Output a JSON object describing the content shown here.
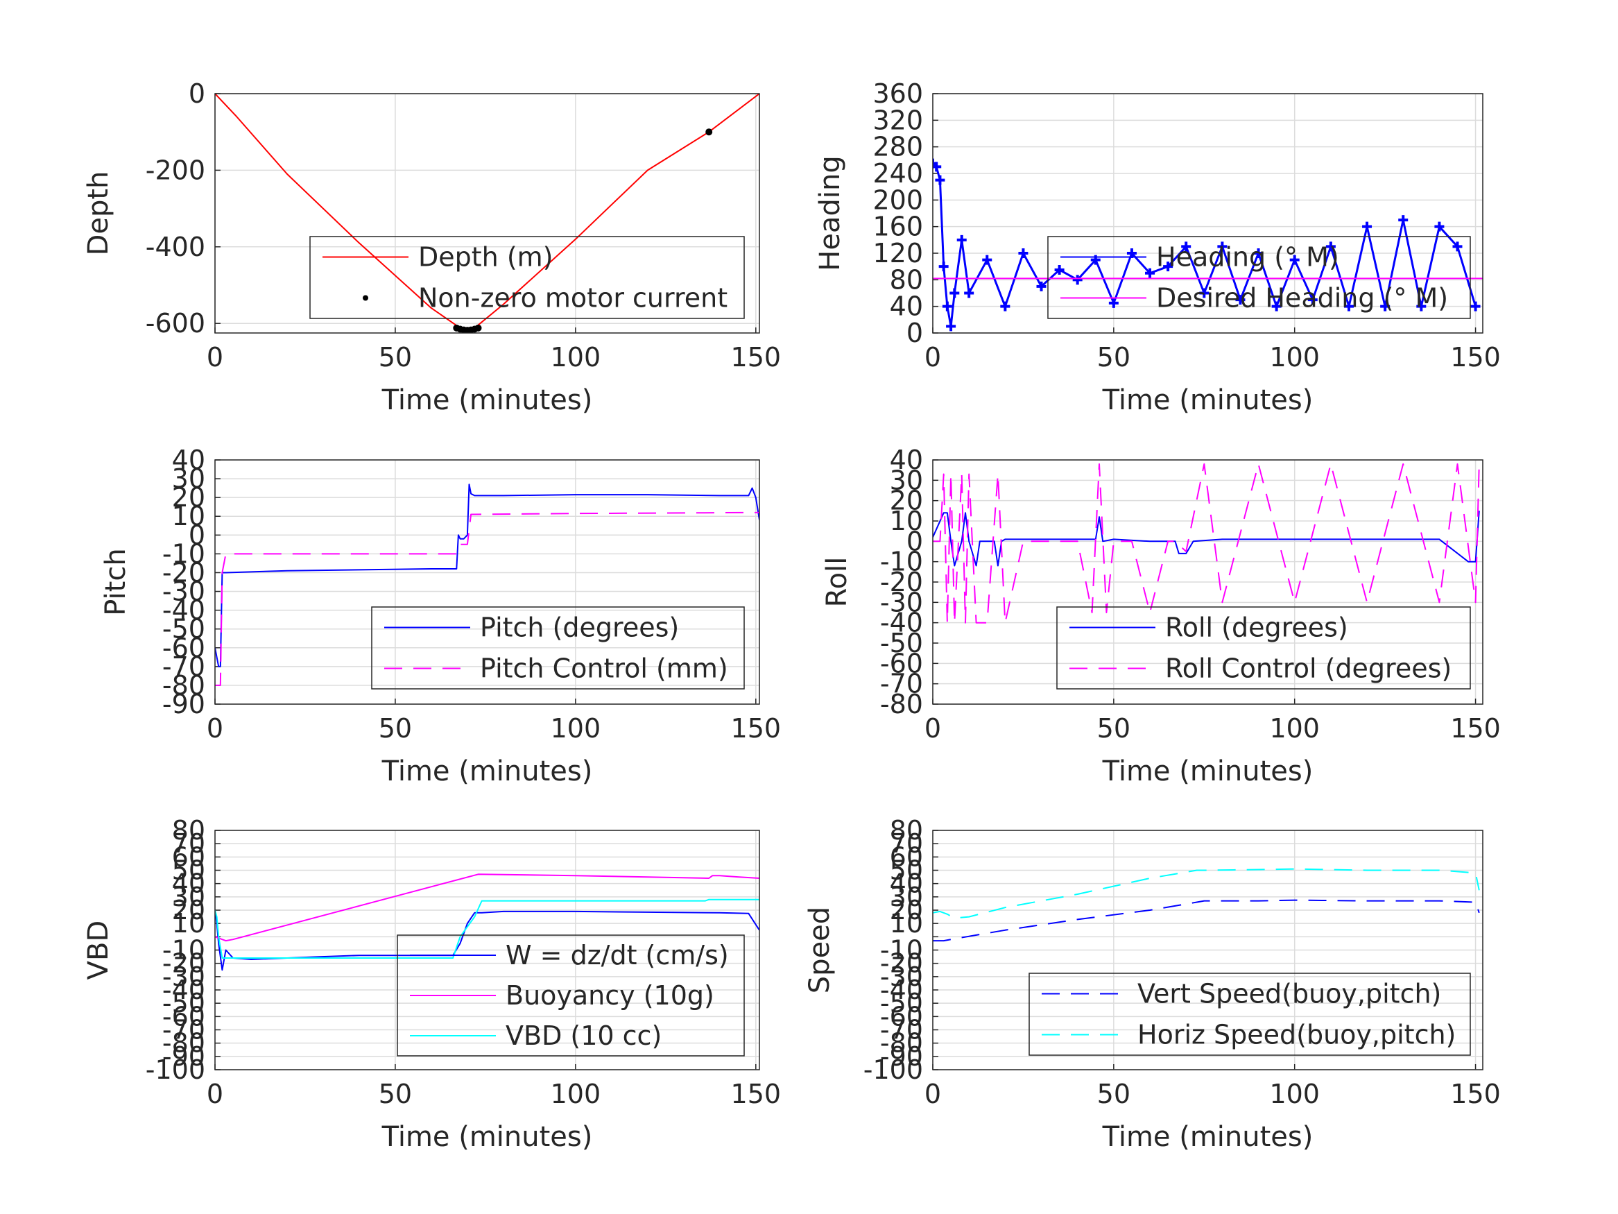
{
  "chart_data": [
    {
      "type": "line",
      "xlabel": "Time (minutes)",
      "ylabel": "Depth",
      "xlim": [
        0,
        151
      ],
      "ylim": [
        -625,
        0
      ],
      "xticks": [
        0,
        50,
        100,
        150
      ],
      "yticks": [
        0,
        -200,
        -400,
        -600
      ],
      "grid": true,
      "legend_position": "bottom-right",
      "series": [
        {
          "name": "Depth (m)",
          "color": "#ff0000",
          "style": "solid",
          "x": [
            0,
            6,
            20,
            40,
            60,
            68,
            72,
            80,
            100,
            120,
            137,
            151
          ],
          "y": [
            0,
            -60,
            -210,
            -390,
            -560,
            -612,
            -612,
            -550,
            -380,
            -200,
            -100,
            0
          ]
        },
        {
          "name": "Non-zero motor current",
          "color": "#000000",
          "style": "dots",
          "x": [
            67,
            68,
            69,
            70,
            71,
            72,
            73,
            137
          ],
          "y": [
            -612,
            -615,
            -617,
            -618,
            -617,
            -615,
            -612,
            -100
          ]
        }
      ]
    },
    {
      "type": "line",
      "xlabel": "Time (minutes)",
      "ylabel": "Heading",
      "xlim": [
        0,
        152
      ],
      "ylim": [
        0,
        360
      ],
      "xticks": [
        0,
        50,
        100,
        150
      ],
      "yticks": [
        0,
        40,
        80,
        120,
        160,
        200,
        240,
        280,
        320,
        360
      ],
      "grid": true,
      "legend_position": "center-right",
      "series": [
        {
          "name": "Heading (° M)",
          "color": "#0000ff",
          "style": "plus-markers",
          "x": [
            0,
            1,
            2,
            3,
            4,
            5,
            6,
            8,
            10,
            15,
            20,
            25,
            30,
            35,
            40,
            45,
            50,
            55,
            60,
            65,
            70,
            75,
            80,
            85,
            90,
            95,
            100,
            105,
            110,
            115,
            120,
            125,
            130,
            135,
            140,
            145,
            150
          ],
          "y": [
            255,
            250,
            230,
            100,
            40,
            10,
            60,
            140,
            60,
            110,
            40,
            120,
            70,
            95,
            80,
            110,
            45,
            120,
            90,
            100,
            130,
            60,
            130,
            50,
            120,
            40,
            110,
            50,
            130,
            40,
            160,
            40,
            170,
            40,
            160,
            130,
            40
          ]
        },
        {
          "name": "Desired Heading (° M)",
          "color": "#ff00ff",
          "style": "solid",
          "x": [
            0,
            152
          ],
          "y": [
            82,
            82
          ]
        }
      ]
    },
    {
      "type": "line",
      "xlabel": "Time (minutes)",
      "ylabel": "Pitch",
      "xlim": [
        0,
        151
      ],
      "ylim": [
        -90,
        40
      ],
      "xticks": [
        0,
        50,
        100,
        150
      ],
      "yticks": [
        40,
        30,
        20,
        10,
        0,
        -10,
        -20,
        -30,
        -40,
        -50,
        -60,
        -70,
        -80,
        -90
      ],
      "grid": true,
      "legend_position": "bottom-right",
      "series": [
        {
          "name": "Pitch (degrees)",
          "color": "#0000ff",
          "style": "solid",
          "x": [
            0,
            1,
            1.5,
            2,
            3,
            20,
            40,
            60,
            67,
            67.5,
            68,
            69,
            70,
            70.5,
            71,
            72,
            80,
            100,
            120,
            140,
            148,
            149,
            150,
            151
          ],
          "y": [
            -60,
            -70,
            -70,
            -20,
            -20,
            -19,
            -18.5,
            -18,
            -18,
            0,
            -2,
            -2,
            0,
            27,
            22,
            21,
            21,
            21.5,
            21.5,
            21,
            21,
            25,
            20,
            8
          ]
        },
        {
          "name": "Pitch Control (mm)",
          "color": "#ff00ff",
          "style": "dashed",
          "x": [
            0,
            1.5,
            2,
            3,
            67,
            68,
            70,
            71,
            100,
            151
          ],
          "y": [
            -80,
            -80,
            -20,
            -10,
            -10,
            -5,
            -5,
            11,
            11.5,
            12
          ]
        }
      ]
    },
    {
      "type": "line",
      "xlabel": "Time (minutes)",
      "ylabel": "Roll",
      "xlim": [
        0,
        152
      ],
      "ylim": [
        -80,
        40
      ],
      "xticks": [
        0,
        50,
        100,
        150
      ],
      "yticks": [
        40,
        30,
        20,
        10,
        0,
        -10,
        -20,
        -30,
        -40,
        -50,
        -60,
        -70,
        -80
      ],
      "grid": true,
      "legend_position": "bottom-right",
      "series": [
        {
          "name": "Roll (degrees)",
          "color": "#0000ff",
          "style": "solid",
          "x": [
            0,
            3,
            4,
            5,
            6,
            8,
            9,
            10,
            12,
            13,
            14,
            17,
            18,
            19,
            20,
            30,
            35,
            40,
            45,
            46,
            47,
            50,
            60,
            67,
            68,
            70,
            72,
            80,
            90,
            100,
            110,
            120,
            130,
            140,
            148,
            150,
            151
          ],
          "y": [
            2,
            14,
            14,
            0,
            -12,
            0,
            14,
            0,
            -12,
            0,
            0,
            0,
            -12,
            0,
            1,
            1,
            1,
            1,
            1,
            12,
            0,
            1,
            0,
            0,
            -6,
            -6,
            0,
            1,
            1,
            1,
            1,
            1,
            1,
            1,
            -10,
            -10,
            15
          ]
        },
        {
          "name": "Roll Control (degrees)",
          "color": "#ff00ff",
          "style": "dashed",
          "x": [
            0,
            2,
            3,
            4,
            5,
            6,
            8,
            9,
            10,
            12,
            15,
            18,
            20,
            25,
            30,
            40,
            44,
            46,
            48,
            50,
            55,
            60,
            65,
            67,
            70,
            75,
            80,
            90,
            100,
            110,
            120,
            130,
            140,
            145,
            150,
            151
          ],
          "y": [
            0,
            0,
            33,
            -40,
            33,
            -40,
            33,
            -40,
            33,
            -40,
            -40,
            33,
            -40,
            0,
            0,
            0,
            -35,
            38,
            -35,
            0,
            0,
            -35,
            0,
            0,
            -5,
            38,
            -30,
            38,
            -30,
            38,
            -30,
            38,
            -30,
            38,
            -30,
            38
          ]
        }
      ]
    },
    {
      "type": "line",
      "xlabel": "Time (minutes)",
      "ylabel": "VBD",
      "xlim": [
        0,
        151
      ],
      "ylim": [
        -100,
        80
      ],
      "xticks": [
        0,
        50,
        100,
        150
      ],
      "yticks": [
        80,
        70,
        60,
        50,
        40,
        30,
        20,
        10,
        0,
        -10,
        -20,
        -30,
        -40,
        -50,
        -60,
        -70,
        -80,
        -90,
        -100
      ],
      "ytick_labels": [
        "80",
        "70",
        "60",
        "50",
        "40",
        "30",
        "20",
        "10",
        "",
        "-10",
        "-20",
        "-30",
        "-40",
        "-50",
        "-60",
        "-70",
        "-80",
        "-90",
        "-100"
      ],
      "grid": true,
      "legend_position": "bottom-right",
      "series": [
        {
          "name": "W = dz/dt (cm/s)",
          "color": "#0000ff",
          "style": "solid",
          "x": [
            0,
            0.5,
            1,
            2,
            3,
            5,
            10,
            20,
            40,
            60,
            66,
            68,
            70,
            72,
            74,
            80,
            100,
            120,
            140,
            148,
            151
          ],
          "y": [
            20,
            10,
            -5,
            -25,
            -10,
            -16,
            -17,
            -16,
            -14,
            -14,
            -14,
            -5,
            10,
            18,
            18,
            19,
            19,
            18.5,
            18,
            17.5,
            5
          ]
        },
        {
          "name": "Buoyancy (10g)",
          "color": "#ff00ff",
          "style": "solid",
          "x": [
            0,
            2,
            3,
            5,
            73,
            100,
            137,
            138,
            140,
            145,
            151
          ],
          "y": [
            0,
            -2,
            -3,
            -2,
            47,
            46,
            44,
            46,
            46,
            45,
            44
          ]
        },
        {
          "name": "VBD (10 cc)",
          "color": "#00ffff",
          "style": "solid",
          "x": [
            0,
            0.5,
            1,
            2,
            5,
            40,
            66,
            68,
            72,
            74,
            100,
            136,
            137,
            151
          ],
          "y": [
            20,
            15,
            0,
            -16,
            -16,
            -16,
            -16,
            0,
            15,
            27,
            27,
            27,
            28,
            28
          ]
        }
      ]
    },
    {
      "type": "line",
      "xlabel": "Time (minutes)",
      "ylabel": "Speed",
      "xlim": [
        0,
        152
      ],
      "ylim": [
        -100,
        80
      ],
      "xticks": [
        0,
        50,
        100,
        150
      ],
      "yticks": [
        80,
        70,
        60,
        50,
        40,
        30,
        20,
        10,
        0,
        -10,
        -20,
        -30,
        -40,
        -50,
        -60,
        -70,
        -80,
        -90,
        -100
      ],
      "ytick_labels": [
        "80",
        "70",
        "60",
        "50",
        "40",
        "30",
        "20",
        "10",
        "",
        "-10",
        "-20",
        "-30",
        "-40",
        "-50",
        "-60",
        "-70",
        "-80",
        "-90",
        "-100"
      ],
      "grid": true,
      "legend_position": "bottom-right",
      "series": [
        {
          "name": "Vert Speed(buoy,pitch)",
          "color": "#0000ff",
          "style": "dashed",
          "x": [
            0,
            2,
            3,
            5,
            20,
            40,
            60,
            73,
            75,
            90,
            100,
            120,
            140,
            150,
            151
          ],
          "y": [
            -3,
            -3,
            -3,
            -2,
            5,
            13,
            20,
            26,
            27,
            27,
            27.5,
            27,
            27,
            26,
            18
          ]
        },
        {
          "name": "Horiz Speed(buoy,pitch)",
          "color": "#00ffff",
          "style": "dashed",
          "x": [
            0,
            2,
            4,
            6,
            10,
            20,
            40,
            60,
            73,
            75,
            90,
            100,
            120,
            140,
            150,
            151
          ],
          "y": [
            18,
            19,
            17,
            14,
            15,
            22,
            32,
            44,
            50,
            50,
            50.5,
            51,
            50,
            50,
            48,
            35
          ]
        }
      ]
    }
  ]
}
